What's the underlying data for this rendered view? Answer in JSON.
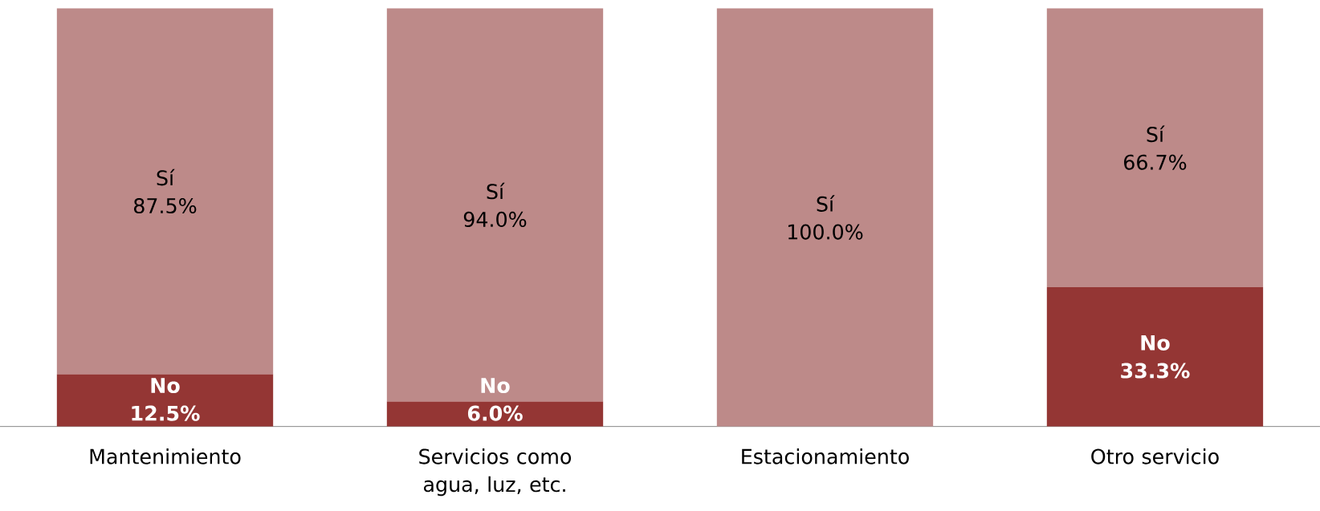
{
  "chart_data": {
    "type": "bar",
    "stacked": true,
    "categories": [
      "Mantenimiento",
      "Servicios como agua, luz, etc.",
      "Estacionamiento",
      "Otro servicio"
    ],
    "ylim": [
      0,
      100
    ],
    "series": [
      {
        "name": "No",
        "color": "#943634",
        "values": [
          12.5,
          6.0,
          0,
          33.3
        ],
        "value_labels": [
          "12.5%",
          "6.0%",
          null,
          "33.3%"
        ]
      },
      {
        "name": "Sí",
        "color": "#bd8a89",
        "values": [
          87.5,
          94.0,
          100.0,
          66.7
        ],
        "value_labels": [
          "87.5%",
          "94.0%",
          "100.0%",
          "66.7%"
        ]
      }
    ]
  }
}
